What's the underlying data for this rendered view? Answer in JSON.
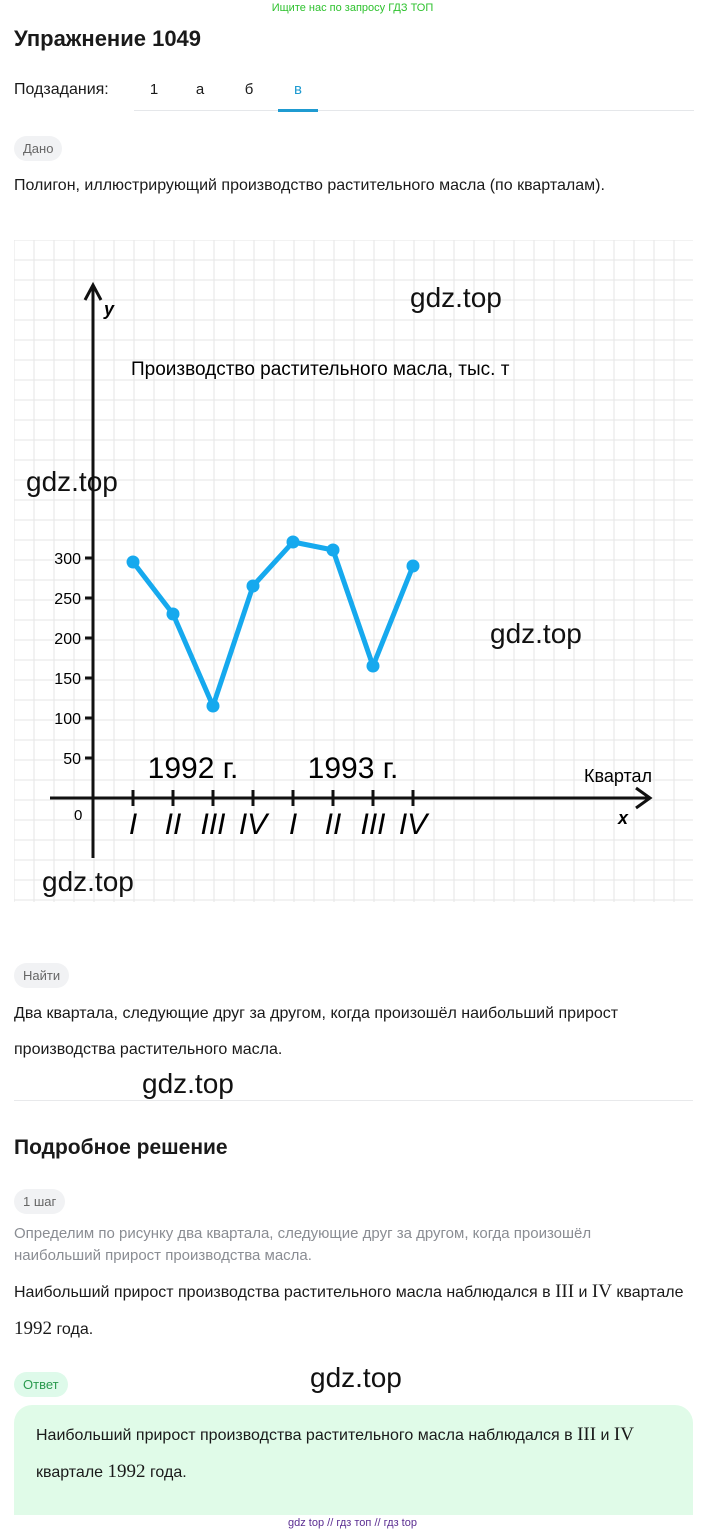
{
  "top_banner": "Ищите нас по запросу ГДЗ ТОП",
  "title": "Упражнение 1049",
  "subtasks": {
    "label": "Подзадания:",
    "items": [
      "1",
      "а",
      "б",
      "в"
    ],
    "active": 3
  },
  "given": {
    "badge": "Дано",
    "text": "Полигон, иллюстрирующий производство растительного масла (по кварталам)."
  },
  "chart_data": {
    "type": "line",
    "title": "Производство растительного масла, тыс. т",
    "xlabel": "Квартал",
    "ylabel": "",
    "x_axis_letter": "x",
    "y_axis_letter": "y",
    "origin_label": "0",
    "categories": [
      "I",
      "II",
      "III",
      "IV",
      "I",
      "II",
      "III",
      "IV"
    ],
    "year_labels": [
      "1992 г.",
      "1993 г."
    ],
    "yticks": [
      "50",
      "100",
      "150",
      "200",
      "250",
      "300"
    ],
    "values": [
      295,
      230,
      115,
      265,
      320,
      310,
      165,
      290
    ],
    "ylim": [
      0,
      375
    ],
    "grid": true,
    "color": "#16a9ee"
  },
  "find": {
    "badge": "Найти",
    "text": "Два квартала, следующие друг за другом, когда произошёл наибольший прирост производства растительного масла."
  },
  "solution": {
    "heading": "Подробное решение",
    "step_badge": "1 шаг",
    "hint": "Определим по рисунку два квартала, следующие друг за другом, когда произошёл наибольший прирост производства масла.",
    "text_a": "Наибольший прирост производства растительного масла наблюдался в ",
    "r3": "III",
    "text_b": " и ",
    "r4": "IV",
    "text_c": " квартале ",
    "year": "1992",
    "text_d": " года."
  },
  "answer": {
    "badge": "Ответ",
    "text_a": "Наибольший прирост производства растительного масла наблюдался в ",
    "r3": "III",
    "text_b": " и ",
    "r4": "IV",
    "text_c": " квартале ",
    "year": "1992",
    "text_d": " года."
  },
  "watermark": "gdz.top",
  "footer": {
    "a": "gdz top",
    "sep": "//",
    "b": "гдз топ",
    "c": "гдз top"
  }
}
